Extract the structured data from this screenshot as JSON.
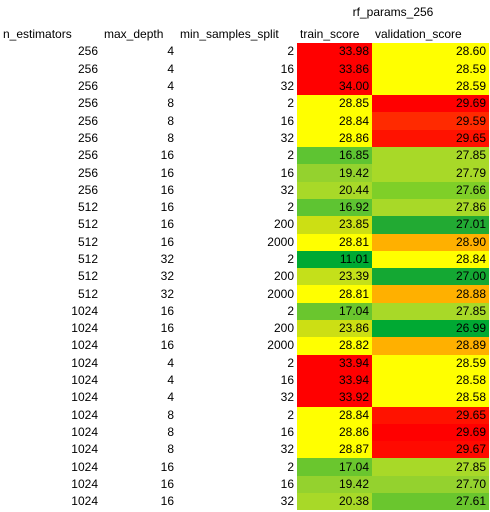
{
  "sheet_title": "rf_params_256",
  "headers": [
    "n_estimators",
    "max_depth",
    "min_samples_split",
    "train_score",
    "validation_score"
  ],
  "rows": [
    [
      "256",
      "4",
      "2",
      "33.98",
      "28.60"
    ],
    [
      "256",
      "4",
      "16",
      "33.86",
      "28.59"
    ],
    [
      "256",
      "4",
      "32",
      "34.00",
      "28.59"
    ],
    [
      "256",
      "8",
      "2",
      "28.85",
      "29.69"
    ],
    [
      "256",
      "8",
      "16",
      "28.84",
      "29.59"
    ],
    [
      "256",
      "8",
      "32",
      "28.86",
      "29.65"
    ],
    [
      "256",
      "16",
      "2",
      "16.85",
      "27.85"
    ],
    [
      "256",
      "16",
      "16",
      "19.42",
      "27.79"
    ],
    [
      "256",
      "16",
      "32",
      "20.44",
      "27.66"
    ],
    [
      "512",
      "16",
      "2",
      "16.92",
      "27.86"
    ],
    [
      "512",
      "16",
      "200",
      "23.85",
      "27.01"
    ],
    [
      "512",
      "16",
      "2000",
      "28.81",
      "28.90"
    ],
    [
      "512",
      "32",
      "2",
      "11.01",
      "28.84"
    ],
    [
      "512",
      "32",
      "200",
      "23.39",
      "27.00"
    ],
    [
      "512",
      "32",
      "2000",
      "28.81",
      "28.88"
    ],
    [
      "1024",
      "16",
      "2",
      "17.04",
      "27.85"
    ],
    [
      "1024",
      "16",
      "200",
      "23.86",
      "26.99"
    ],
    [
      "1024",
      "16",
      "2000",
      "28.82",
      "28.89"
    ],
    [
      "1024",
      "4",
      "2",
      "33.94",
      "28.59"
    ],
    [
      "1024",
      "4",
      "16",
      "33.94",
      "28.58"
    ],
    [
      "1024",
      "4",
      "32",
      "33.92",
      "28.58"
    ],
    [
      "1024",
      "8",
      "2",
      "28.84",
      "29.65"
    ],
    [
      "1024",
      "8",
      "16",
      "28.86",
      "29.69"
    ],
    [
      "1024",
      "8",
      "32",
      "28.87",
      "29.67"
    ],
    [
      "1024",
      "16",
      "2",
      "17.04",
      "27.85"
    ],
    [
      "1024",
      "16",
      "16",
      "19.42",
      "27.70"
    ],
    [
      "1024",
      "16",
      "32",
      "20.38",
      "27.61"
    ]
  ],
  "cell_colors": {
    "train_score": [
      "#ff0000",
      "#ff0000",
      "#ff0000",
      "#ffff00",
      "#ffff00",
      "#ffff00",
      "#5ec432",
      "#94d22e",
      "#a8d928",
      "#5ec432",
      "#ccdf14",
      "#ffff00",
      "#00a933",
      "#c4e01a",
      "#ffff00",
      "#6ac62e",
      "#ccdf14",
      "#ffff00",
      "#ff0000",
      "#ff0000",
      "#ff0000",
      "#ffff00",
      "#ffff00",
      "#ffff00",
      "#6ac62e",
      "#94d22e",
      "#a8d928"
    ],
    "validation_score": [
      "#ffff00",
      "#ffff00",
      "#ffff00",
      "#ff0000",
      "#ff2a00",
      "#ff1200",
      "#a8d928",
      "#a8d928",
      "#7fcf28",
      "#a8d928",
      "#22aa33",
      "#ffb000",
      "#ffff00",
      "#14a833",
      "#ffb000",
      "#a8d928",
      "#00a933",
      "#ffb000",
      "#ffff00",
      "#ffff00",
      "#ffff00",
      "#ff1200",
      "#ff0000",
      "#ff0a00",
      "#a8d928",
      "#94d22e",
      "#6ac62e"
    ]
  }
}
